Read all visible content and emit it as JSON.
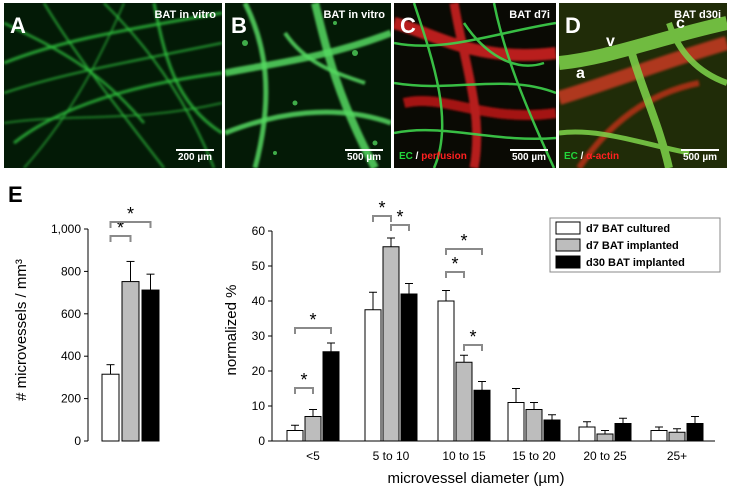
{
  "panels": [
    {
      "letter": "A",
      "title": "BAT in vitro",
      "scale": "200 µm"
    },
    {
      "letter": "B",
      "title": "BAT in vitro",
      "scale": "500 µm"
    },
    {
      "letter": "C",
      "title": "BAT d7i",
      "scale": "500 µm",
      "stain_green": "EC",
      "stain_sep": " / ",
      "stain_red": "perfusion"
    },
    {
      "letter": "D",
      "title": "BAT d30i",
      "scale": "500 µm",
      "stain_green": "EC",
      "stain_sep": " / ",
      "stain_red": "α-actin",
      "markers": {
        "v": "v",
        "c": "c",
        "a": "a"
      }
    }
  ],
  "panel_e_label": "E",
  "colors": {
    "cultured": "#ffffff",
    "implanted_d7": "#bdbdbd",
    "implanted_d30": "#000000",
    "bracket": "#8a8a8a"
  },
  "chart_data": [
    {
      "type": "bar",
      "ylabel": "# microvessels / mm³",
      "ylim": [
        0,
        1000
      ],
      "yticks": [
        "0",
        "200",
        "400",
        "600",
        "800",
        "1,000"
      ],
      "series": [
        {
          "value": 315,
          "err": 45
        },
        {
          "value": 752,
          "err": 95
        },
        {
          "value": 712,
          "err": 75
        }
      ],
      "significance": [
        "*",
        "*"
      ]
    },
    {
      "type": "bar",
      "xlabel": "microvessel diameter (µm)",
      "ylabel": "normalized %",
      "ylim": [
        0,
        60
      ],
      "yticks": [
        "0",
        "10",
        "20",
        "30",
        "40",
        "50",
        "60"
      ],
      "categories": [
        "<5",
        "5 to 10",
        "10 to 15",
        "15 to 20",
        "20 to 25",
        "25+"
      ],
      "series": [
        {
          "name": "d7 BAT cultured",
          "values": [
            3,
            37.5,
            40,
            11,
            4,
            3
          ],
          "errors": [
            1.5,
            5,
            3,
            4,
            1.5,
            1
          ]
        },
        {
          "name": "d7 BAT implanted",
          "values": [
            7,
            55.5,
            22.5,
            9,
            2,
            2.5
          ],
          "errors": [
            2,
            2.5,
            2,
            2,
            1,
            1
          ]
        },
        {
          "name": "d30 BAT implanted",
          "values": [
            25.5,
            42,
            14.5,
            6,
            5,
            5
          ],
          "errors": [
            2.5,
            3,
            2.5,
            1.5,
            1.5,
            2
          ]
        }
      ],
      "significance": [
        "*",
        "*",
        "*",
        "*",
        "*",
        "*",
        "*"
      ],
      "legend_position": "top-right"
    }
  ]
}
